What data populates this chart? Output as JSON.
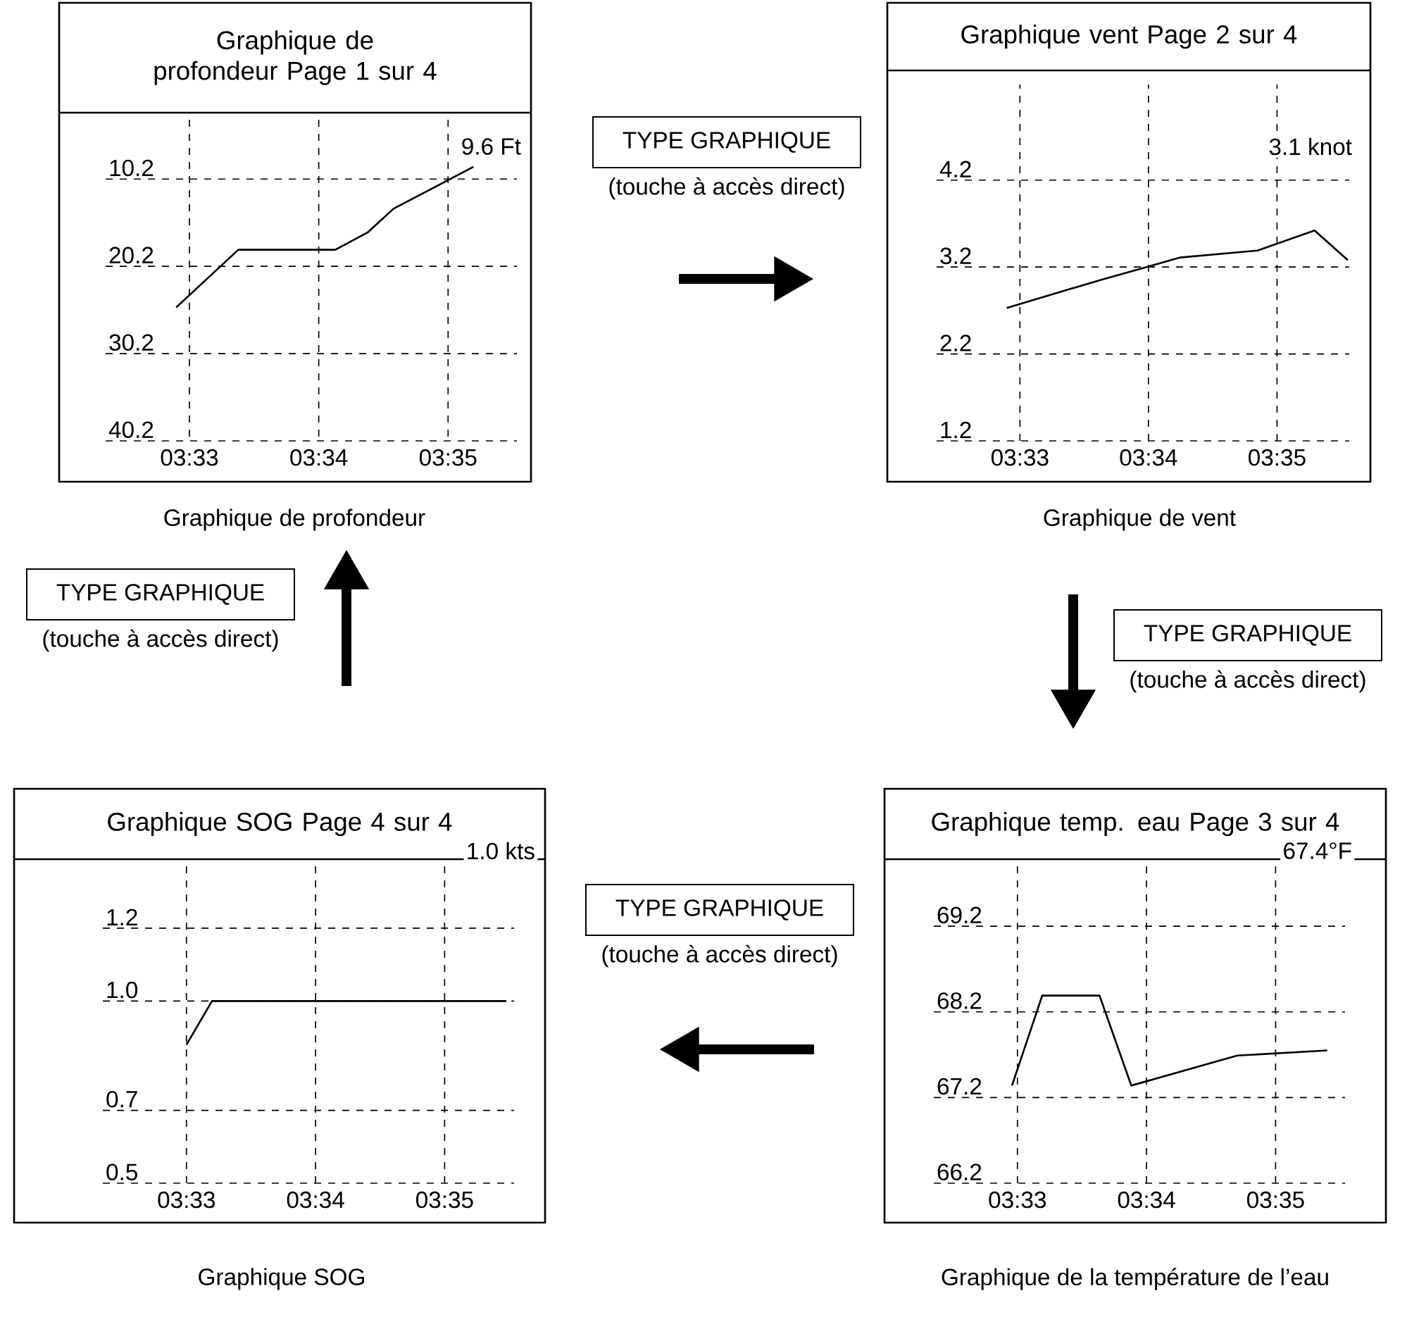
{
  "chart_data": [
    {
      "type": "line",
      "title": "Graphique de profondeur Page 1 sur 4",
      "color": "#000000",
      "grid": true,
      "x": [
        3.5483,
        3.5563,
        3.5688,
        3.573,
        3.5763,
        3.5866
      ],
      "values": [
        24.9,
        18.3,
        18.3,
        16.3,
        13.6,
        8.8
      ],
      "xlim": [
        3.5392,
        3.5922
      ],
      "ylim": [
        40.2,
        3.4
      ],
      "xticks": [
        {
          "value": 3.55,
          "label": "03:33"
        },
        {
          "value": 3.566667,
          "label": "03:34"
        },
        {
          "value": 3.583333,
          "label": "03:35"
        }
      ],
      "yticks": [
        10.2,
        20.2,
        30.2,
        40.2
      ],
      "annotations": [
        "9.6 Ft",
        "Graphique de profondeur",
        "TYPE GRAPHIQUE",
        "(touche à accès direct)"
      ]
    },
    {
      "type": "line",
      "title": "Graphique vent Page 2 sur 4",
      "color": "#000000",
      "grid": true,
      "x": [
        3.5483,
        3.5604,
        3.5664,
        3.5708,
        3.5808,
        3.5882,
        3.5925
      ],
      "values": [
        2.73,
        3.05,
        3.2,
        3.31,
        3.39,
        3.62,
        3.28
      ],
      "xlim": [
        3.5392,
        3.5927
      ],
      "ylim": [
        1.2,
        5.3
      ],
      "xticks": [
        {
          "value": 3.55,
          "label": "03:33"
        },
        {
          "value": 3.566667,
          "label": "03:34"
        },
        {
          "value": 3.583333,
          "label": "03:35"
        }
      ],
      "yticks": [
        1.2,
        2.2,
        3.2,
        4.2
      ],
      "annotations": [
        "3.1 knot",
        "Graphique de vent",
        "TYPE GRAPHIQUE",
        "(touche à accès direct)"
      ]
    },
    {
      "type": "line",
      "title": "Graphique SOG Page 4 sur 4",
      "color": "#000000",
      "grid": true,
      "x": [
        3.55,
        3.5533,
        3.5913
      ],
      "values": [
        0.88,
        1.0,
        1.0
      ],
      "xlim": [
        3.5392,
        3.5923
      ],
      "ylim": [
        0.5,
        1.37
      ],
      "xticks": [
        {
          "value": 3.55,
          "label": "03:33"
        },
        {
          "value": 3.566667,
          "label": "03:34"
        },
        {
          "value": 3.583333,
          "label": "03:35"
        }
      ],
      "yticks": [
        0.5,
        0.7,
        {
          "value": 1.0,
          "label": "1.0"
        },
        1.2
      ],
      "annotations": [
        "1.0 kts",
        "Graphique SOG",
        "TYPE GRAPHIQUE",
        "(touche à accès direct)"
      ]
    },
    {
      "type": "line",
      "title": "Graphique temp. eau Page 3 sur 4",
      "color": "#000000",
      "grid": true,
      "x": [
        3.5493,
        3.5532,
        3.5606,
        3.5647,
        3.5784,
        3.59
      ],
      "values": [
        67.34,
        68.39,
        68.39,
        67.34,
        67.69,
        67.75
      ],
      "xlim": [
        3.5392,
        3.5923
      ],
      "ylim": [
        66.2,
        69.9
      ],
      "xticks": [
        {
          "value": 3.55,
          "label": "03:33"
        },
        {
          "value": 3.566667,
          "label": "03:34"
        },
        {
          "value": 3.583333,
          "label": "03:35"
        }
      ],
      "yticks": [
        66.2,
        67.2,
        68.2,
        69.2
      ],
      "annotations": [
        "67.4°F",
        "Graphique de la température de l’eau",
        "TYPE GRAPHIQUE",
        "(touche à accès direct)"
      ]
    }
  ]
}
